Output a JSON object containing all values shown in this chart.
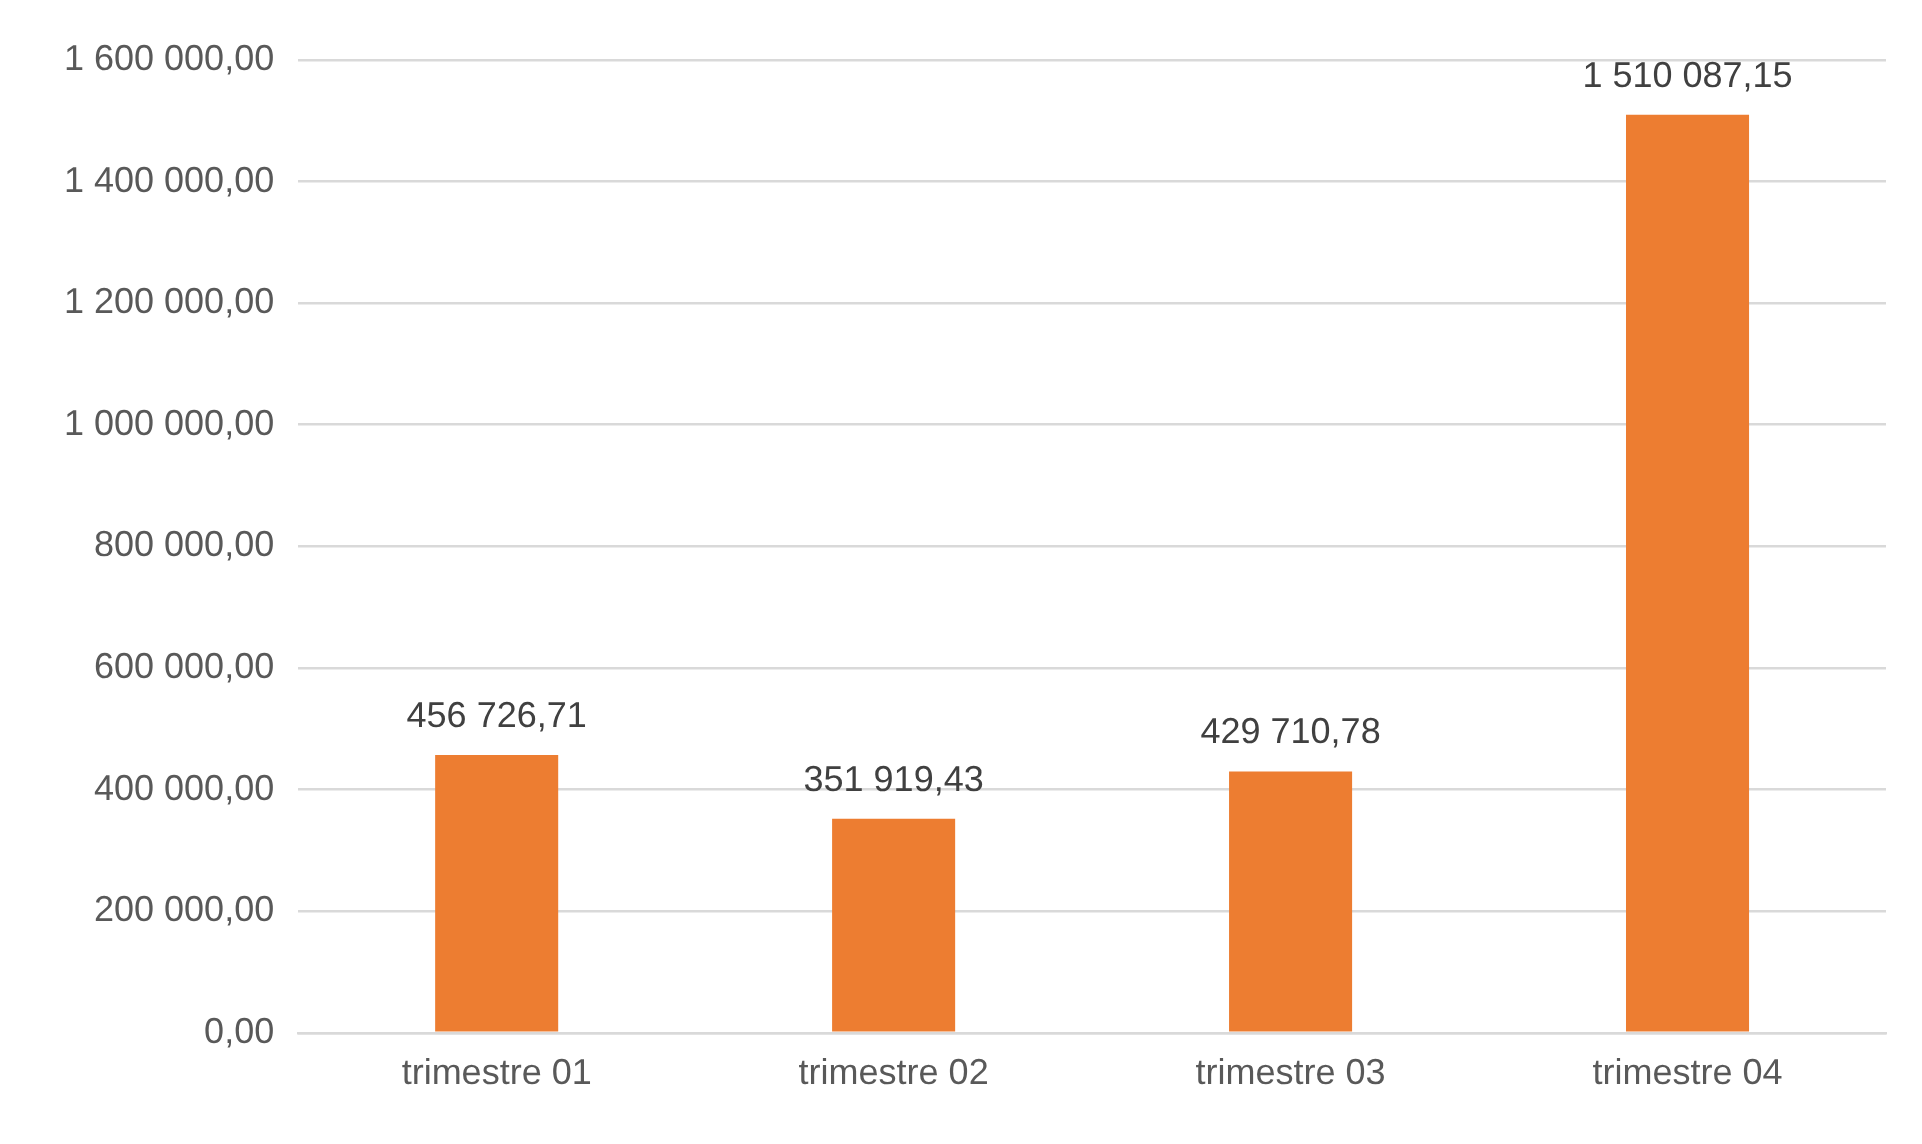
{
  "chart_data": {
    "type": "bar",
    "categories": [
      "trimestre 01",
      "trimestre 02",
      "trimestre 03",
      "trimestre 04"
    ],
    "values": [
      456726.71,
      351919.43,
      429710.78,
      1510087.15
    ],
    "value_labels": [
      "456 726,71",
      "351 919,43",
      "429 710,78",
      "1 510 087,15"
    ],
    "color": "#ed7d31",
    "ylim": [
      0,
      1600000
    ],
    "yticks": [
      {
        "value": 0,
        "label": "0,00"
      },
      {
        "value": 200000,
        "label": "200 000,00"
      },
      {
        "value": 400000,
        "label": "400 000,00"
      },
      {
        "value": 600000,
        "label": "600 000,00"
      },
      {
        "value": 800000,
        "label": "800 000,00"
      },
      {
        "value": 1000000,
        "label": "1 000 000,00"
      },
      {
        "value": 1200000,
        "label": "1 200 000,00"
      },
      {
        "value": 1400000,
        "label": "1 400 000,00"
      },
      {
        "value": 1600000,
        "label": "1 600 000,00"
      }
    ],
    "grid": "y",
    "legend": false
  }
}
